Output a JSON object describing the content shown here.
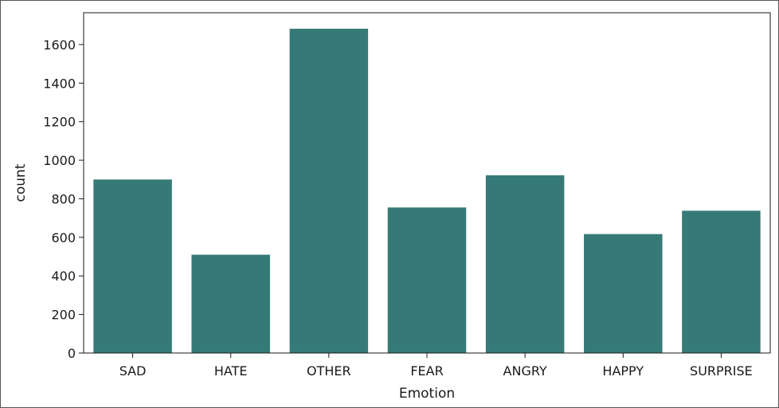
{
  "chart_data": {
    "type": "bar",
    "categories": [
      "SAD",
      "HATE",
      "OTHER",
      "FEAR",
      "ANGRY",
      "HAPPY",
      "SURPRISE"
    ],
    "values": [
      900,
      510,
      1682,
      755,
      922,
      617,
      738
    ],
    "xlabel": "Emotion",
    "ylabel": "count",
    "ylim": [
      0,
      1765
    ],
    "yticks": [
      0,
      200,
      400,
      600,
      800,
      1000,
      1200,
      1400,
      1600
    ],
    "grid": false,
    "legend": "none",
    "bar_color": "#367a78",
    "axis_color": "#1a1a1a"
  }
}
